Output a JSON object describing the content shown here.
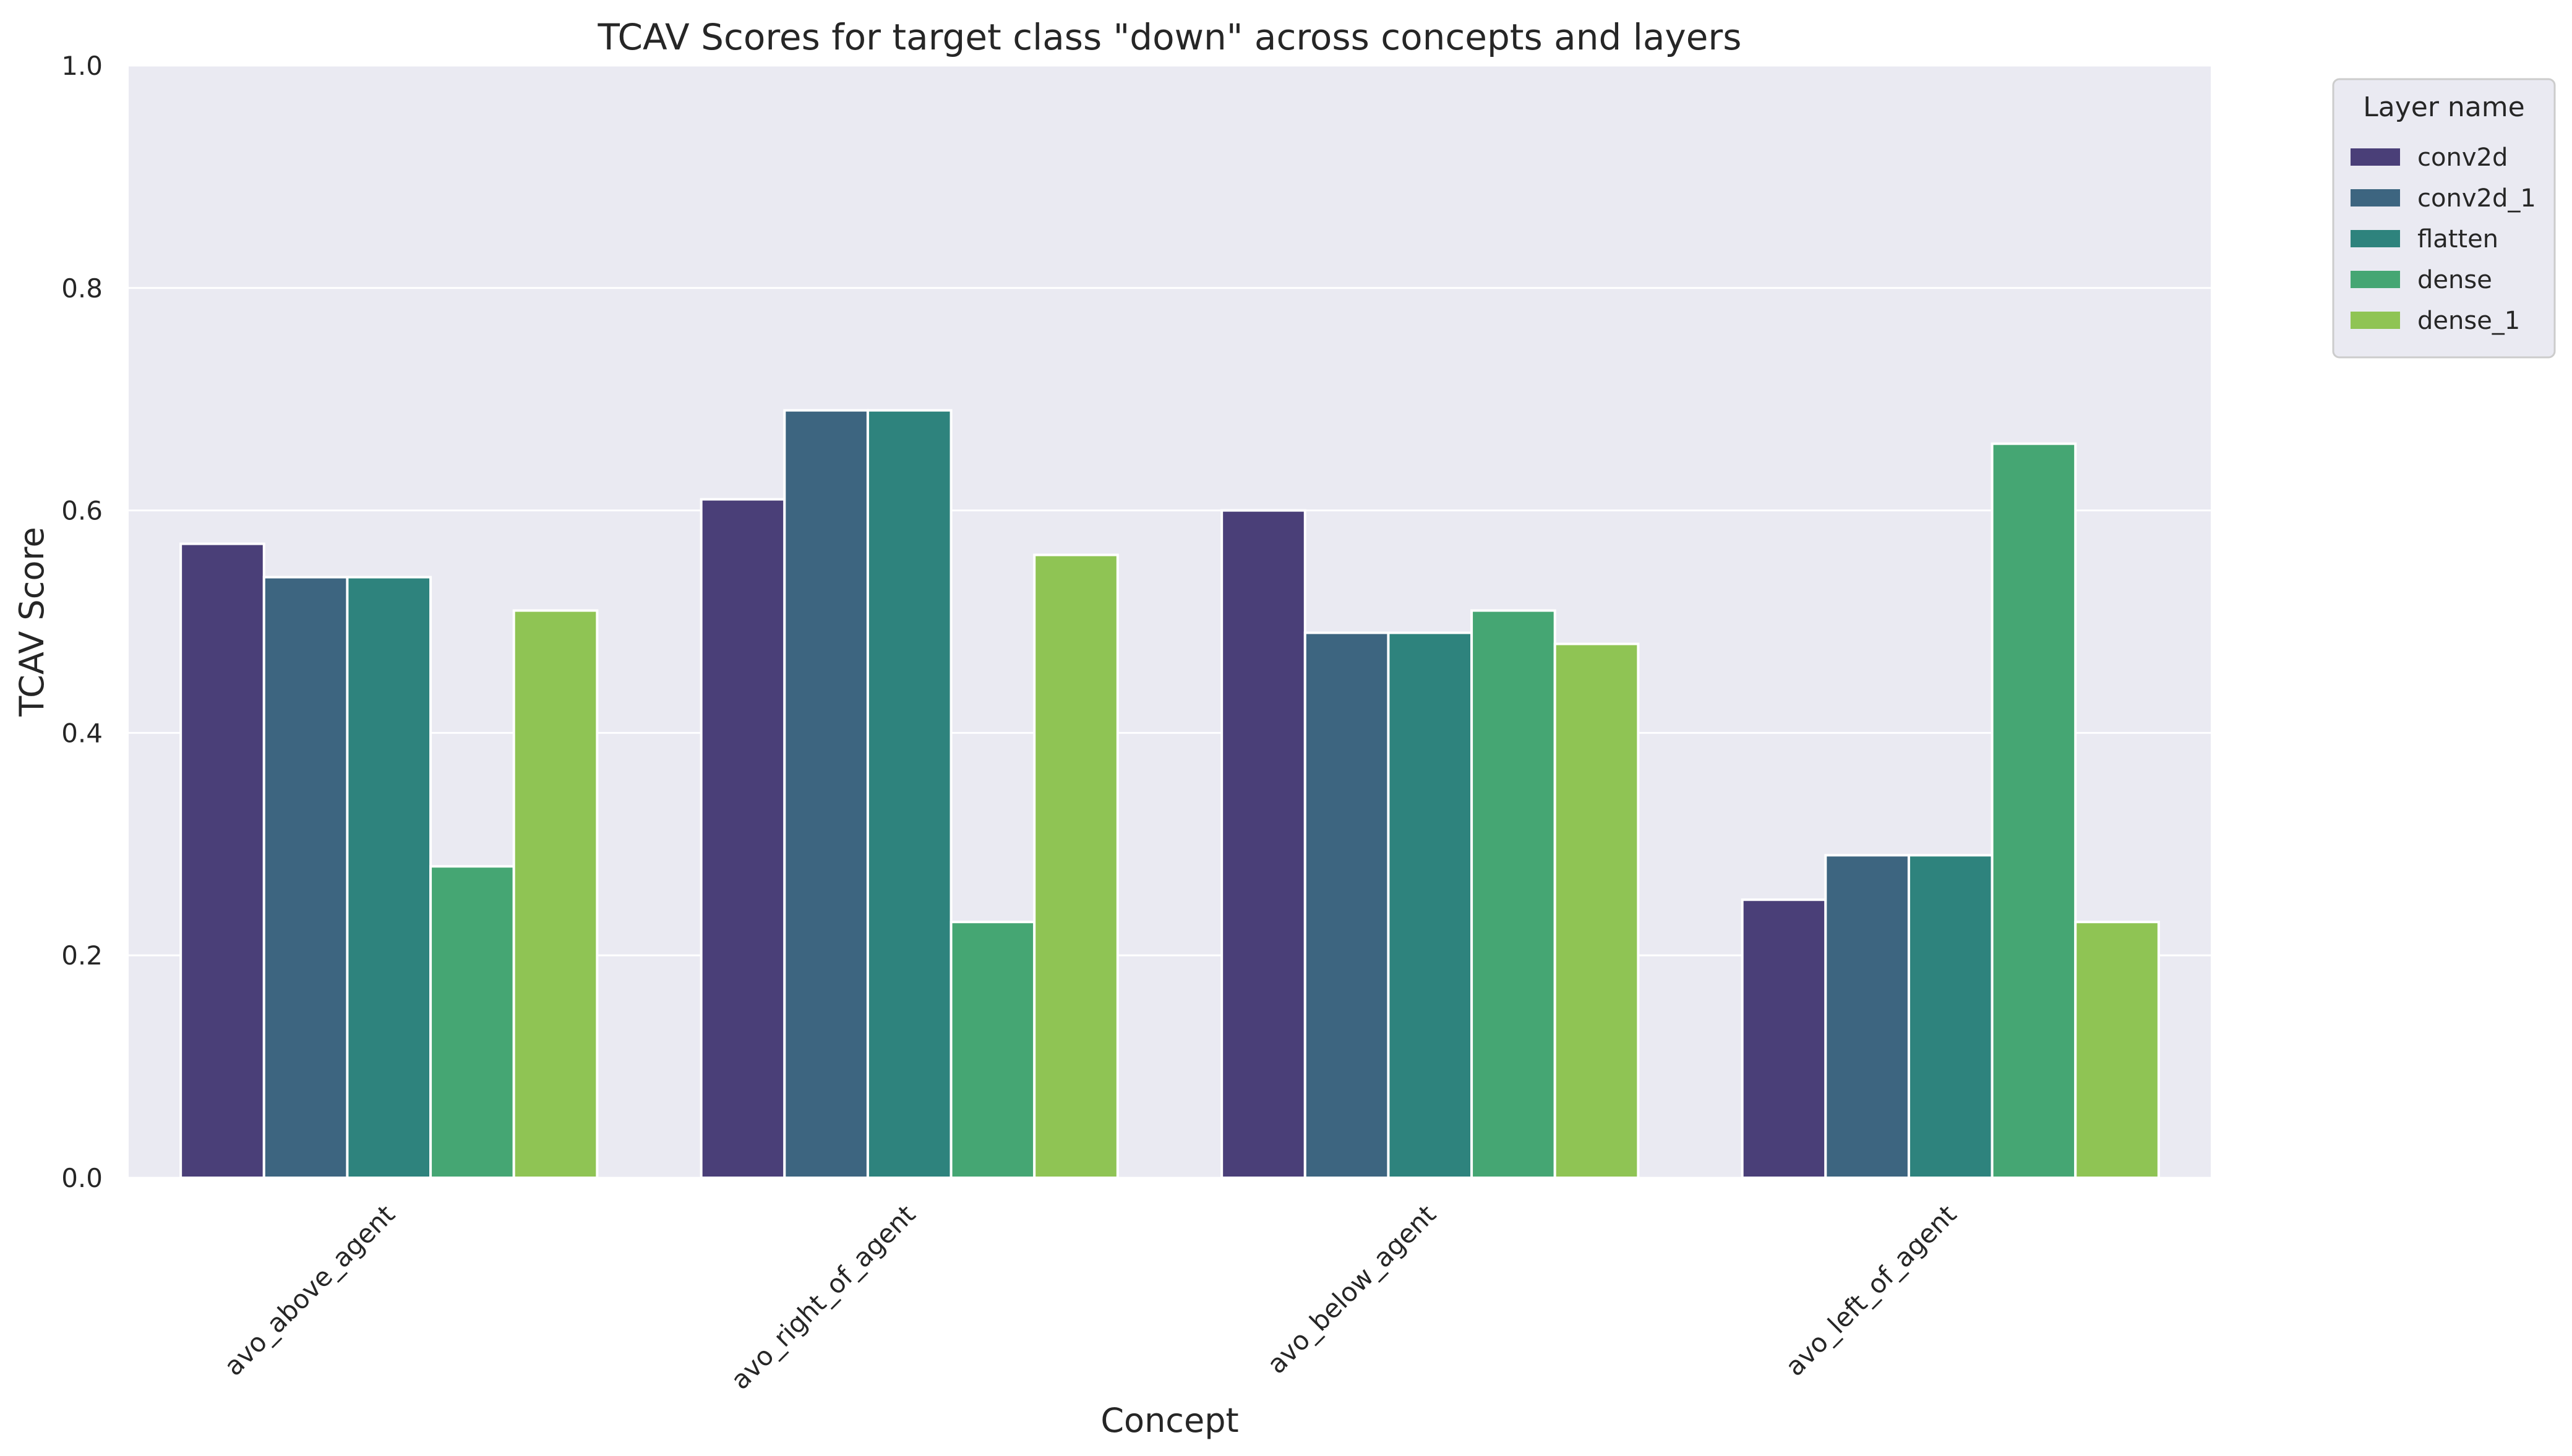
{
  "chart_data": {
    "type": "bar",
    "title": "TCAV Scores for target class \"down\" across concepts and layers",
    "xlabel": "Concept",
    "ylabel": "TCAV Score",
    "ylim": [
      0,
      1.0
    ],
    "yticks": [
      "0.0",
      "0.2",
      "0.4",
      "0.6",
      "0.8",
      "1.0"
    ],
    "grid": true,
    "legend_title": "Layer name",
    "legend_position": "outside-top-right",
    "categories": [
      "avo_above_agent",
      "avo_right_of_agent",
      "avo_below_agent",
      "avo_left_of_agent"
    ],
    "series": [
      {
        "name": "conv2d",
        "color": "#4a3f78",
        "values": [
          0.57,
          0.61,
          0.6,
          0.25
        ]
      },
      {
        "name": "conv2d_1",
        "color": "#3d6580",
        "values": [
          0.54,
          0.69,
          0.49,
          0.29
        ]
      },
      {
        "name": "flatten",
        "color": "#2e837d",
        "values": [
          0.54,
          0.69,
          0.49,
          0.29
        ]
      },
      {
        "name": "dense",
        "color": "#45a673",
        "values": [
          0.28,
          0.23,
          0.51,
          0.66
        ]
      },
      {
        "name": "dense_1",
        "color": "#8fc454",
        "values": [
          0.51,
          0.56,
          0.48,
          0.23
        ]
      }
    ],
    "plot_background": "#eaeaf2"
  }
}
